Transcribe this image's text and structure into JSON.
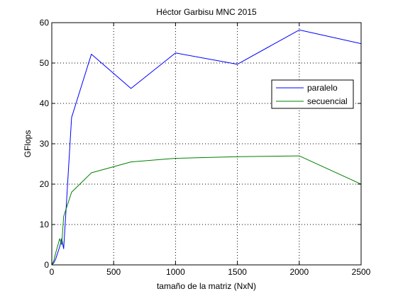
{
  "chart_data": {
    "type": "line",
    "title": "Héctor Garbisu MNC 2015",
    "xlabel": "tamaño de la matriz (NxN)",
    "ylabel": "GFlops",
    "xlim": [
      0,
      2500
    ],
    "ylim": [
      0,
      60
    ],
    "xticks": [
      0,
      500,
      1000,
      1500,
      2000,
      2500
    ],
    "yticks": [
      0,
      10,
      20,
      30,
      40,
      50,
      60
    ],
    "grid": true,
    "grid_style": "dotted",
    "legend_position": "right",
    "series": [
      {
        "name": "paralelo",
        "color": "#0000ff",
        "x": [
          0,
          16,
          32,
          64,
          80,
          96,
          112,
          160,
          320,
          640,
          1000,
          1500,
          2000,
          2500
        ],
        "y": [
          0,
          0.5,
          1.5,
          4.5,
          6.5,
          4.0,
          12.0,
          36.5,
          52.2,
          43.7,
          52.5,
          49.7,
          58.2,
          54.8
        ]
      },
      {
        "name": "secuencial",
        "color": "#008000",
        "x": [
          0,
          16,
          32,
          64,
          80,
          96,
          112,
          160,
          320,
          640,
          1000,
          1500,
          2000,
          2500
        ],
        "y": [
          0,
          1.0,
          3.0,
          6.5,
          5.0,
          12.0,
          13.5,
          18.0,
          22.8,
          25.5,
          26.4,
          26.8,
          27.0,
          20.0
        ]
      }
    ]
  }
}
